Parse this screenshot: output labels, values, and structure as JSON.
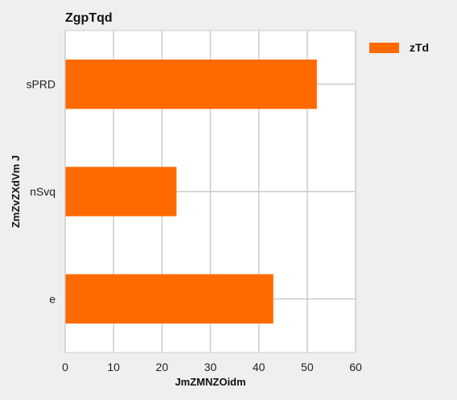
{
  "chart_data": {
    "type": "bar",
    "orientation": "horizontal",
    "title": "ZgpTqd",
    "xlabel": "JmZMNZOidm",
    "ylabel": "ZmZvZXdVm J",
    "categories": [
      "sPRD",
      "nSvq",
      "e"
    ],
    "series": [
      {
        "name": "zTd",
        "values": [
          52,
          23,
          43
        ],
        "color": "#ff6a00"
      }
    ],
    "xlim": [
      0,
      60
    ],
    "xticks": [
      0,
      10,
      20,
      30,
      40,
      50,
      60
    ],
    "grid": true,
    "legend_position": "top-right",
    "colors": {
      "background": "#efefef",
      "plot_background": "#ffffff",
      "grid": "#cccccc",
      "bar": "#ff6a00"
    }
  }
}
